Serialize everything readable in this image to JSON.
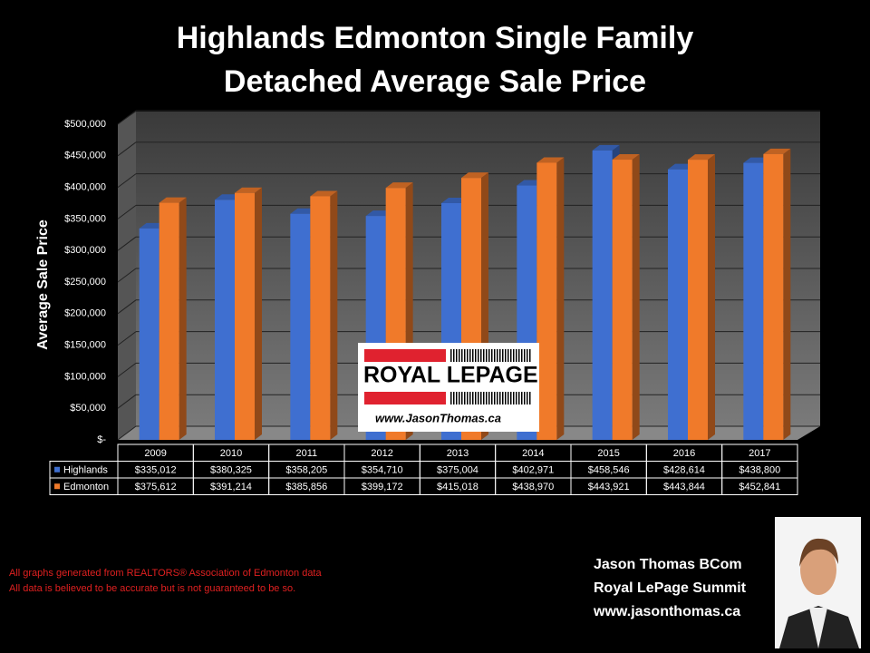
{
  "chart_data": {
    "type": "bar3d",
    "title": "Highlands Edmonton Single Family Detached Average Sale Price",
    "y_label": "Average Sale Price",
    "categories": [
      "2009",
      "2010",
      "2011",
      "2012",
      "2013",
      "2014",
      "2015",
      "2016",
      "2017"
    ],
    "series": [
      {
        "name": "Highlands",
        "color": "#3f6fd0",
        "values": [
          335012,
          380325,
          358205,
          354710,
          375004,
          402971,
          458546,
          428614,
          438800
        ],
        "value_labels": [
          "$335,012",
          "$380,325",
          "$358,205",
          "$354,710",
          "$375,004",
          "$402,971",
          "$458,546",
          "$428,614",
          "$438,800"
        ]
      },
      {
        "name": "Edmonton",
        "color": "#f07a2a",
        "values": [
          375612,
          391214,
          385856,
          399172,
          415018,
          438970,
          443921,
          443844,
          452841
        ],
        "value_labels": [
          "$375,612",
          "$391,214",
          "$385,856",
          "$399,172",
          "$415,018",
          "$438,970",
          "$443,921",
          "$443,844",
          "$452,841"
        ]
      }
    ],
    "ylim": [
      0,
      500000
    ],
    "yticks": [
      {
        "value": 0,
        "label": "$-"
      },
      {
        "value": 50000,
        "label": "$50,000"
      },
      {
        "value": 100000,
        "label": "$100,000"
      },
      {
        "value": 150000,
        "label": "$150,000"
      },
      {
        "value": 200000,
        "label": "$200,000"
      },
      {
        "value": 250000,
        "label": "$250,000"
      },
      {
        "value": 300000,
        "label": "$300,000"
      },
      {
        "value": 350000,
        "label": "$350,000"
      },
      {
        "value": 400000,
        "label": "$400,000"
      },
      {
        "value": 450000,
        "label": "$450,000"
      },
      {
        "value": 500000,
        "label": "$500,000"
      }
    ],
    "grid": true
  },
  "logo": {
    "name": "ROYAL LEPAGE",
    "url": "www.JasonThomas.ca"
  },
  "footnotes": [
    "All graphs generated from REALTORS® Association of Edmonton data",
    "All data is believed to be accurate but is not guaranteed to be so."
  ],
  "contact": [
    "Jason Thomas BCom",
    "Royal LePage Summit",
    "www.jasonthomas.ca"
  ]
}
